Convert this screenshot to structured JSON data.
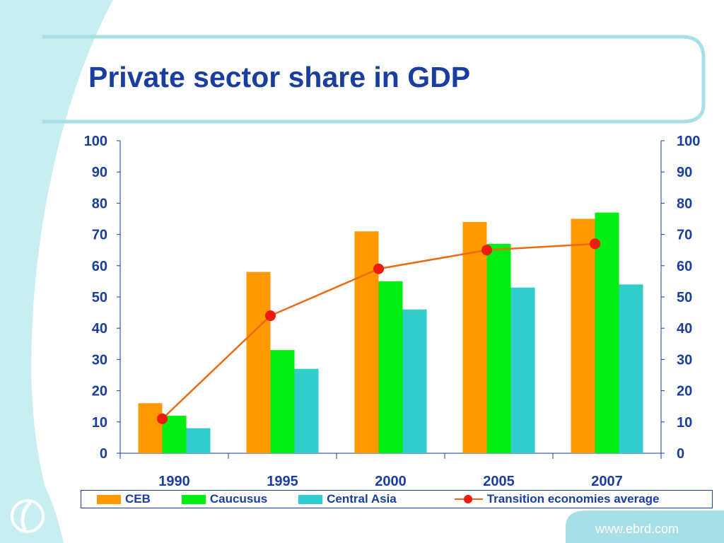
{
  "slide": {
    "title": "Private sector share in GDP",
    "footer_url": "www.ebrd.com"
  },
  "colors": {
    "title": "#1a3da0",
    "background_teal": "#c8eef2",
    "frame_teal": "#9fdde4",
    "ceb": "#ff9900",
    "caucusus": "#00ee11",
    "central_asia": "#33cccc",
    "average_line": "#ee6a10",
    "average_marker": "#ee1c0e"
  },
  "chart_data": {
    "type": "bar",
    "title": "",
    "xlabel": "",
    "ylabel": "",
    "categories": [
      "1990",
      "1995",
      "2000",
      "2005",
      "2007"
    ],
    "ylim": [
      0,
      100
    ],
    "yticks": [
      "0",
      "10",
      "20",
      "30",
      "40",
      "50",
      "60",
      "70",
      "80",
      "90",
      "100"
    ],
    "secondary_ylim": [
      0,
      100
    ],
    "grid": false,
    "legend_position": "bottom",
    "series": [
      {
        "name": "CEB",
        "type": "bar",
        "color": "#ff9900",
        "values": [
          16,
          58,
          71,
          74,
          75
        ]
      },
      {
        "name": "Caucusus",
        "type": "bar",
        "color": "#00ee11",
        "values": [
          12,
          33,
          55,
          67,
          77
        ]
      },
      {
        "name": "Central Asia",
        "type": "bar",
        "color": "#33cccc",
        "values": [
          8,
          27,
          46,
          53,
          54
        ]
      },
      {
        "name": "Transition economies average",
        "type": "line",
        "color": "#ee6a10",
        "marker_color": "#ee1c0e",
        "values": [
          11,
          44,
          59,
          65,
          67
        ]
      }
    ]
  }
}
